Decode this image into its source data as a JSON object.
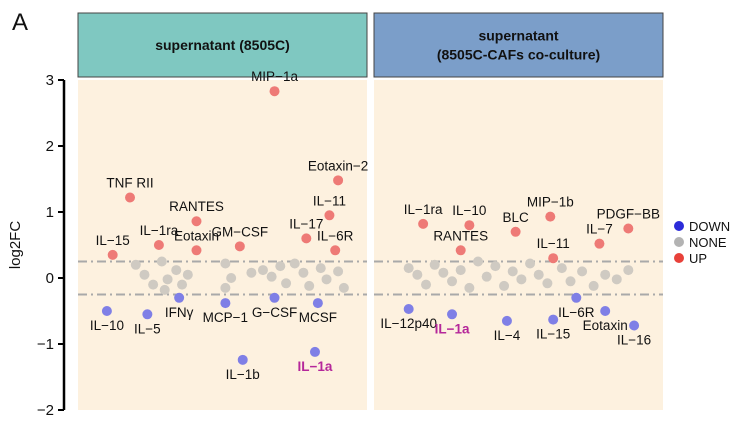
{
  "panel_letter": "A",
  "chart_data": {
    "type": "scatter",
    "ylabel": "log2FC",
    "ylim": [
      -2,
      3
    ],
    "yticks": [
      -2,
      -1,
      0,
      1,
      2,
      3
    ],
    "threshold_lines": [
      0.25,
      -0.25
    ],
    "legend": {
      "placement": "right",
      "entries": [
        {
          "label": "DOWN",
          "color": "#2b2bd9"
        },
        {
          "label": "NONE",
          "color": "#b3b3b3"
        },
        {
          "label": "UP",
          "color": "#e8413a"
        }
      ]
    },
    "point_colors": {
      "UP": "#ee7a76",
      "DOWN": "#7f7fe6",
      "NONE": "#cfcac2"
    },
    "highlight_color": "#b5279a",
    "panels": [
      {
        "title_lines": [
          "supernatant (8505C)"
        ],
        "header_color": "#7fc8c1",
        "labeled_points": [
          {
            "label": "MIP−1a",
            "x": 0.68,
            "y": 2.83,
            "group": "UP"
          },
          {
            "label": "Eotaxin−2",
            "x": 0.9,
            "y": 1.48,
            "group": "UP"
          },
          {
            "label": "TNF RII",
            "x": 0.18,
            "y": 1.22,
            "group": "UP"
          },
          {
            "label": "IL−11",
            "x": 0.87,
            "y": 0.95,
            "group": "UP"
          },
          {
            "label": "RANTES",
            "x": 0.41,
            "y": 0.86,
            "group": "UP"
          },
          {
            "label": "IL−17",
            "x": 0.79,
            "y": 0.6,
            "group": "UP"
          },
          {
            "label": "IL−1ra",
            "x": 0.28,
            "y": 0.5,
            "group": "UP"
          },
          {
            "label": "GM−CSF",
            "x": 0.56,
            "y": 0.48,
            "group": "UP"
          },
          {
            "label": "IL−6R",
            "x": 0.89,
            "y": 0.42,
            "group": "UP"
          },
          {
            "label": "Eotaxin",
            "x": 0.41,
            "y": 0.42,
            "group": "UP"
          },
          {
            "label": "IL−15",
            "x": 0.12,
            "y": 0.35,
            "group": "UP"
          },
          {
            "label": "IL−10",
            "x": 0.1,
            "y": -0.5,
            "group": "DOWN"
          },
          {
            "label": "IL−5",
            "x": 0.24,
            "y": -0.55,
            "group": "DOWN"
          },
          {
            "label": "IFNγ",
            "x": 0.35,
            "y": -0.3,
            "group": "DOWN"
          },
          {
            "label": "MCP−1",
            "x": 0.51,
            "y": -0.38,
            "group": "DOWN"
          },
          {
            "label": "G−CSF",
            "x": 0.68,
            "y": -0.3,
            "group": "DOWN"
          },
          {
            "label": "MCSF",
            "x": 0.83,
            "y": -0.38,
            "group": "DOWN"
          },
          {
            "label": "IL−1b",
            "x": 0.57,
            "y": -1.24,
            "group": "DOWN"
          },
          {
            "label": "IL−1a",
            "x": 0.82,
            "y": -1.12,
            "group": "DOWN",
            "highlight": true
          }
        ],
        "none_points": [
          {
            "x": 0.2,
            "y": 0.2
          },
          {
            "x": 0.23,
            "y": 0.05
          },
          {
            "x": 0.26,
            "y": -0.1
          },
          {
            "x": 0.29,
            "y": 0.25
          },
          {
            "x": 0.31,
            "y": -0.02
          },
          {
            "x": 0.34,
            "y": 0.12
          },
          {
            "x": 0.36,
            "y": -0.1
          },
          {
            "x": 0.38,
            "y": 0.05
          },
          {
            "x": 0.3,
            "y": -0.18
          },
          {
            "x": 0.51,
            "y": 0.22
          },
          {
            "x": 0.53,
            "y": 0.0
          },
          {
            "x": 0.51,
            "y": -0.15
          },
          {
            "x": 0.6,
            "y": 0.08
          },
          {
            "x": 0.64,
            "y": 0.12
          },
          {
            "x": 0.67,
            "y": 0.02
          },
          {
            "x": 0.7,
            "y": 0.18
          },
          {
            "x": 0.72,
            "y": -0.08
          },
          {
            "x": 0.75,
            "y": 0.22
          },
          {
            "x": 0.78,
            "y": 0.08
          },
          {
            "x": 0.8,
            "y": -0.12
          },
          {
            "x": 0.84,
            "y": 0.15
          },
          {
            "x": 0.86,
            "y": -0.02
          },
          {
            "x": 0.9,
            "y": 0.1
          },
          {
            "x": 0.92,
            "y": -0.15
          }
        ]
      },
      {
        "title_lines": [
          "supernatant",
          "(8505C-CAFs co-culture)"
        ],
        "header_color": "#7b9ec9",
        "labeled_points": [
          {
            "label": "MIP−1b",
            "x": 0.61,
            "y": 0.93,
            "group": "UP"
          },
          {
            "label": "IL−1ra",
            "x": 0.17,
            "y": 0.82,
            "group": "UP"
          },
          {
            "label": "IL−10",
            "x": 0.33,
            "y": 0.8,
            "group": "UP"
          },
          {
            "label": "PDGF−BB",
            "x": 0.88,
            "y": 0.75,
            "group": "UP"
          },
          {
            "label": "BLC",
            "x": 0.49,
            "y": 0.7,
            "group": "UP"
          },
          {
            "label": "IL−7",
            "x": 0.78,
            "y": 0.52,
            "group": "UP"
          },
          {
            "label": "RANTES",
            "x": 0.3,
            "y": 0.42,
            "group": "UP"
          },
          {
            "label": "IL−11",
            "x": 0.62,
            "y": 0.3,
            "group": "UP"
          },
          {
            "label": "IL−12p40",
            "x": 0.12,
            "y": -0.47,
            "group": "DOWN"
          },
          {
            "label": "IL−1a",
            "x": 0.27,
            "y": -0.55,
            "group": "DOWN",
            "highlight": true
          },
          {
            "label": "IL−4",
            "x": 0.46,
            "y": -0.65,
            "group": "DOWN"
          },
          {
            "label": "IL−6R",
            "x": 0.7,
            "y": -0.3,
            "group": "DOWN"
          },
          {
            "label": "IL−15",
            "x": 0.62,
            "y": -0.63,
            "group": "DOWN"
          },
          {
            "label": "Eotaxin",
            "x": 0.8,
            "y": -0.5,
            "group": "DOWN"
          },
          {
            "label": "IL−16",
            "x": 0.9,
            "y": -0.72,
            "group": "DOWN"
          }
        ],
        "none_points": [
          {
            "x": 0.12,
            "y": 0.15
          },
          {
            "x": 0.15,
            "y": 0.05
          },
          {
            "x": 0.18,
            "y": -0.1
          },
          {
            "x": 0.21,
            "y": 0.2
          },
          {
            "x": 0.24,
            "y": 0.08
          },
          {
            "x": 0.27,
            "y": -0.05
          },
          {
            "x": 0.3,
            "y": 0.12
          },
          {
            "x": 0.33,
            "y": -0.15
          },
          {
            "x": 0.36,
            "y": 0.25
          },
          {
            "x": 0.39,
            "y": 0.02
          },
          {
            "x": 0.42,
            "y": 0.18
          },
          {
            "x": 0.45,
            "y": -0.12
          },
          {
            "x": 0.48,
            "y": 0.1
          },
          {
            "x": 0.51,
            "y": -0.02
          },
          {
            "x": 0.54,
            "y": 0.22
          },
          {
            "x": 0.57,
            "y": 0.05
          },
          {
            "x": 0.6,
            "y": -0.08
          },
          {
            "x": 0.65,
            "y": 0.15
          },
          {
            "x": 0.68,
            "y": -0.05
          },
          {
            "x": 0.72,
            "y": 0.1
          },
          {
            "x": 0.76,
            "y": -0.12
          },
          {
            "x": 0.8,
            "y": 0.05
          },
          {
            "x": 0.84,
            "y": -0.02
          },
          {
            "x": 0.88,
            "y": 0.12
          }
        ]
      }
    ]
  }
}
